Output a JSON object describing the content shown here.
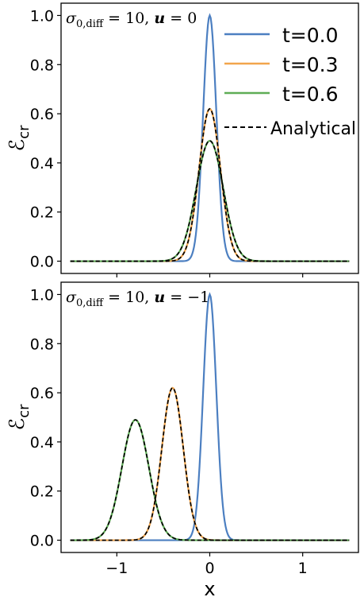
{
  "chart_data": [
    {
      "type": "line",
      "annotation": "σ0,diff = 10, u = 0",
      "ylabel": "ℰcr",
      "xlabel": "",
      "xlim": [
        -1.6,
        1.6
      ],
      "ylim": [
        -0.05,
        1.05
      ],
      "xticks": [
        -1,
        0,
        1
      ],
      "xtick_labels": [
        "",
        "",
        ""
      ],
      "yticks": [
        0.0,
        0.2,
        0.4,
        0.6,
        0.8,
        1.0
      ],
      "ytick_labels": [
        "0.0",
        "0.2",
        "0.4",
        "0.6",
        "0.8",
        "1.0"
      ],
      "grid": false,
      "legend": {
        "placement": "top-right",
        "entries": [
          "t=0.0",
          "t=0.3",
          "t=0.6",
          "Analytical"
        ]
      },
      "series": [
        {
          "name": "t=0.0",
          "color": "#4c7fc1",
          "style": "solid",
          "peak_x": 0.0,
          "peak_y": 1.0,
          "sigma": 0.071
        },
        {
          "name": "t=0.3",
          "color": "#f2a54c",
          "style": "solid",
          "peak_x": 0.0,
          "peak_y": 0.62,
          "sigma": 0.115
        },
        {
          "name": "t=0.6",
          "color": "#5fad56",
          "style": "solid",
          "peak_x": 0.0,
          "peak_y": 0.49,
          "sigma": 0.145
        },
        {
          "name": "Analytical",
          "color": "#000000",
          "style": "dashed",
          "overlays": [
            "t=0.3",
            "t=0.6"
          ]
        }
      ],
      "x_range": [
        -1.5,
        1.5
      ]
    },
    {
      "type": "line",
      "annotation": "σ0,diff = 10, u = −1",
      "ylabel": "ℰcr",
      "xlabel": "x",
      "xlim": [
        -1.6,
        1.6
      ],
      "ylim": [
        -0.05,
        1.05
      ],
      "xticks": [
        -1,
        0,
        1
      ],
      "xtick_labels": [
        "−1",
        "0",
        "1"
      ],
      "yticks": [
        0.0,
        0.2,
        0.4,
        0.6,
        0.8,
        1.0
      ],
      "ytick_labels": [
        "0.0",
        "0.2",
        "0.4",
        "0.6",
        "0.8",
        "1.0"
      ],
      "grid": false,
      "series": [
        {
          "name": "t=0.0",
          "color": "#4c7fc1",
          "style": "solid",
          "peak_x": 0.0,
          "peak_y": 1.0,
          "sigma": 0.071
        },
        {
          "name": "t=0.3",
          "color": "#f2a54c",
          "style": "solid",
          "peak_x": -0.4,
          "peak_y": 0.62,
          "sigma": 0.115
        },
        {
          "name": "t=0.6",
          "color": "#5fad56",
          "style": "solid",
          "peak_x": -0.8,
          "peak_y": 0.49,
          "sigma": 0.145
        },
        {
          "name": "Analytical",
          "color": "#000000",
          "style": "dashed",
          "overlays": [
            "t=0.3",
            "t=0.6"
          ]
        }
      ],
      "x_range": [
        -1.5,
        1.5
      ]
    }
  ]
}
